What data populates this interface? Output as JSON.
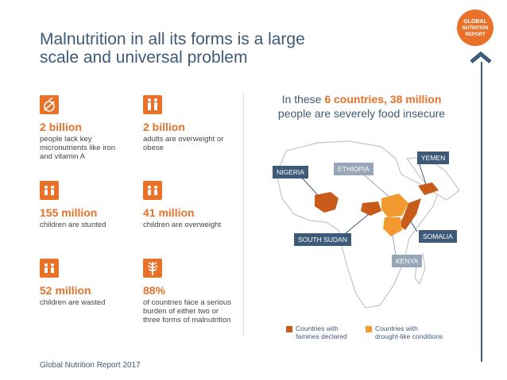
{
  "title": "Malnutrition in all its forms is a large scale and universal problem",
  "badge": {
    "line1": "GLOBAL",
    "line2": "NUTRITION",
    "line3": "REPORT"
  },
  "stats": [
    {
      "value": "2 billion",
      "desc": "people lack key micronutrients like iron and vitamin A",
      "icon": "apple-icon"
    },
    {
      "value": "2 billion",
      "desc": "adults are overweight or obese",
      "icon": "adults-icon"
    },
    {
      "value": "155 million",
      "desc": "children are stunted",
      "icon": "children-icon"
    },
    {
      "value": "41 million",
      "desc": "children are overweight",
      "icon": "children-icon"
    },
    {
      "value": "52 million",
      "desc": "children are wasted",
      "icon": "children-icon"
    },
    {
      "value": "88%",
      "desc": "of countries face a serious burden of either two or three forms of malnutrition",
      "icon": "plant-icon"
    }
  ],
  "map": {
    "heading_pre": "In these ",
    "heading_highlight": "6 countries, 38 million",
    "heading_post": "people are severely food insecure",
    "countries": [
      "NIGERIA",
      "ETHIOPIA",
      "YEMEN",
      "SOUTH SUDAN",
      "SOMALIA",
      "KENYA"
    ],
    "legend": [
      {
        "label_1": "Countries with",
        "label_2": "famines declared",
        "color": "#c85a1a"
      },
      {
        "label_1": "Countries with",
        "label_2": "drought-like conditions",
        "color": "#f29a30"
      }
    ],
    "colors": {
      "label_dark": "#3d5a78",
      "label_light": "#97a7b8",
      "land": "#ffffff",
      "outline": "#c5c5c5"
    }
  },
  "footer": "Global Nutrition Report 2017"
}
